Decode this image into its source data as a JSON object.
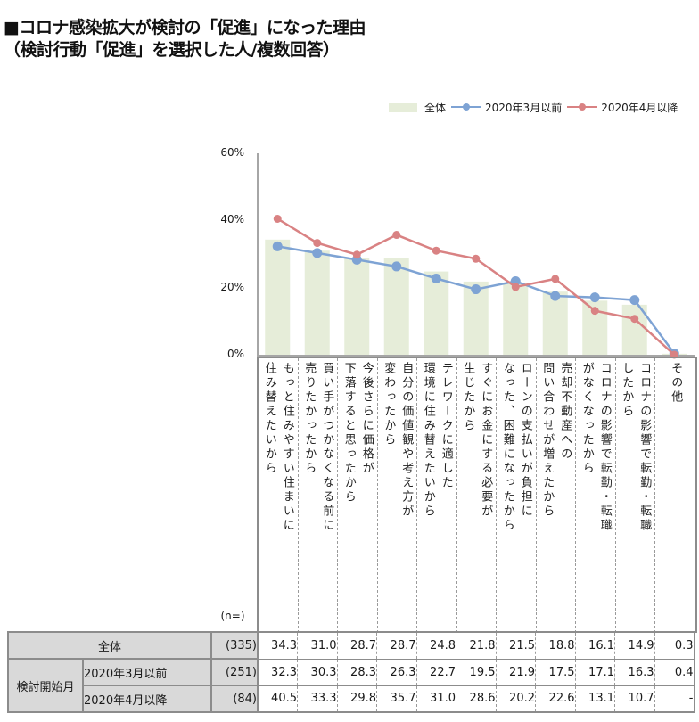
{
  "title": {
    "line1": "■コロナ感染拡大が検討の「促進」になった理由",
    "line2": "（検討行動「促進」を選択した人/複数回答）"
  },
  "legend": {
    "items": [
      {
        "label": "全体",
        "type": "bar",
        "color": "#e6edd9"
      },
      {
        "label": "2020年3月以前",
        "type": "line",
        "color": "#7ea3d4"
      },
      {
        "label": "2020年4月以降",
        "type": "line",
        "color": "#d98283"
      }
    ]
  },
  "y_axis": {
    "ticks": [
      "60%",
      "40%",
      "20%",
      "0%"
    ]
  },
  "categories": [
    {
      "lines": [
        "もっと住みやすい住まいに",
        "住み替えたいから"
      ]
    },
    {
      "lines": [
        "買い手がつかなくなる前に",
        "売りたかったから"
      ]
    },
    {
      "lines": [
        "今後さらに価格が",
        "下落すると思ったから"
      ]
    },
    {
      "lines": [
        "自分の価値観や考え方が",
        "変わったから"
      ]
    },
    {
      "lines": [
        "テレワークに適した",
        "環境に住み替えたいから"
      ]
    },
    {
      "lines": [
        "すぐにお金にする必要が",
        "生じたから"
      ]
    },
    {
      "lines": [
        "ローンの支払いが負担に",
        "なった、困難になったから"
      ]
    },
    {
      "lines": [
        "売却不動産への",
        "問い合わせが増えたから"
      ]
    },
    {
      "lines": [
        "コロナの影響で転勤・転職",
        "がなくなったから"
      ]
    },
    {
      "lines": [
        "コロナの影響で転勤・転職",
        "したから"
      ]
    },
    {
      "lines": [
        "その他"
      ]
    }
  ],
  "table": {
    "n_label": "(n=)",
    "group_label": "検討開始月",
    "rows": [
      {
        "label": "全体",
        "n": "(335)",
        "values": [
          "34.3",
          "31.0",
          "28.7",
          "28.7",
          "24.8",
          "21.8",
          "21.5",
          "18.8",
          "16.1",
          "14.9",
          "0.3"
        ]
      },
      {
        "label": "2020年3月以前",
        "n": "(251)",
        "values": [
          "32.3",
          "30.3",
          "28.3",
          "26.3",
          "22.7",
          "19.5",
          "21.9",
          "17.5",
          "17.1",
          "16.3",
          "0.4"
        ]
      },
      {
        "label": "2020年4月以降",
        "n": "(84)",
        "values": [
          "40.5",
          "33.3",
          "29.8",
          "35.7",
          "31.0",
          "28.6",
          "20.2",
          "22.6",
          "13.1",
          "10.7",
          "-"
        ]
      }
    ]
  },
  "chart_data": {
    "type": "bar+line",
    "title": "コロナ感染拡大が検討の「促進」になった理由（検討行動「促進」を選択した人/複数回答）",
    "xlabel": "",
    "ylabel": "",
    "ylim": [
      0,
      60
    ],
    "yticks": [
      0,
      20,
      40,
      60
    ],
    "ytick_format": "%",
    "grid": false,
    "legend_position": "top-right",
    "categories": [
      "もっと住みやすい住まいに住み替えたいから",
      "買い手がつかなくなる前に売りたかったから",
      "今後さらに価格が下落すると思ったから",
      "自分の価値観や考え方が変わったから",
      "テレワークに適した環境に住み替えたいから",
      "すぐにお金にする必要が生じたから",
      "ローンの支払いが負担になった、困難になったから",
      "売却不動産への問い合わせが増えたから",
      "コロナの影響で転勤・転職がなくなったから",
      "コロナの影響で転勤・転職したから",
      "その他"
    ],
    "series": [
      {
        "name": "全体",
        "type": "bar",
        "n": 335,
        "color": "#e6edd9",
        "values": [
          34.3,
          31.0,
          28.7,
          28.7,
          24.8,
          21.8,
          21.5,
          18.8,
          16.1,
          14.9,
          0.3
        ]
      },
      {
        "name": "2020年3月以前",
        "type": "line",
        "n": 251,
        "color": "#7ea3d4",
        "values": [
          32.3,
          30.3,
          28.3,
          26.3,
          22.7,
          19.5,
          21.9,
          17.5,
          17.1,
          16.3,
          0.4
        ]
      },
      {
        "name": "2020年4月以降",
        "type": "line",
        "n": 84,
        "color": "#d98283",
        "values": [
          40.5,
          33.3,
          29.8,
          35.7,
          31.0,
          28.6,
          20.2,
          22.6,
          13.1,
          10.7,
          0
        ]
      }
    ]
  }
}
